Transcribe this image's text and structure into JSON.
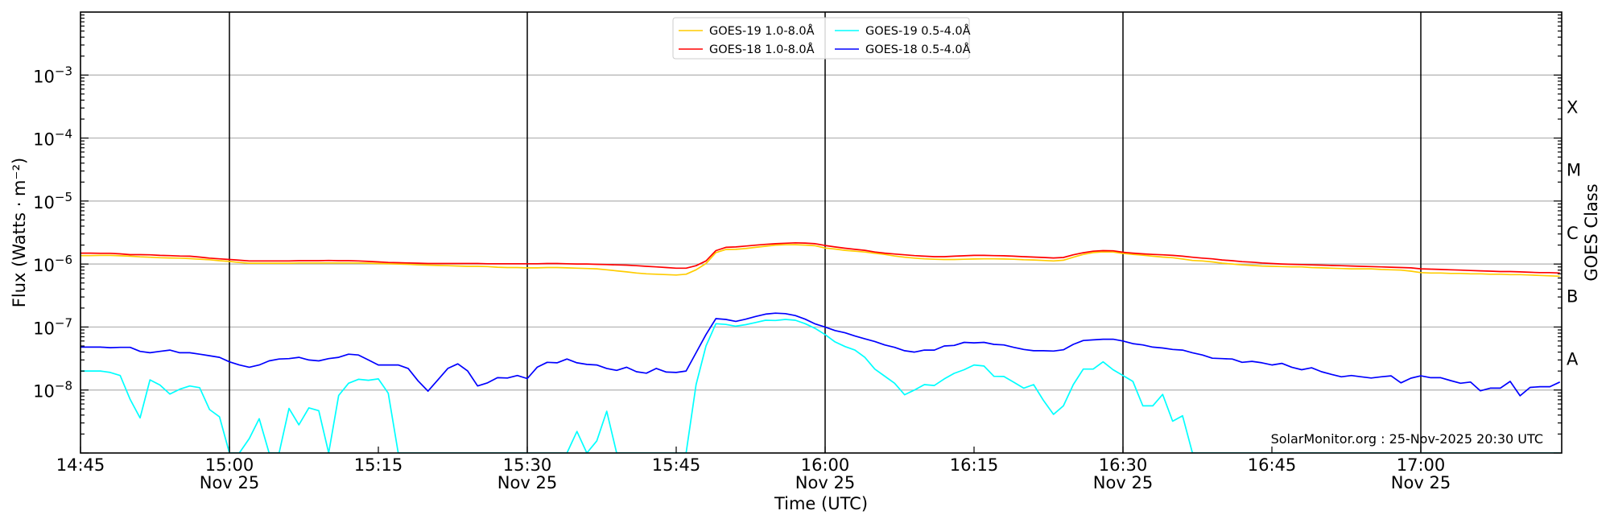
{
  "chart_data": {
    "type": "line",
    "xlabel": "Time (UTC)",
    "ylabel": "Flux (Watts · m⁻²)",
    "right_label": "GOES Class",
    "watermark": "SolarMonitor.org : 25-Nov-2025 20:30 UTC",
    "yscale": "log",
    "ylim": [
      1e-09,
      0.01
    ],
    "xlim": [
      "14:45",
      "17:14"
    ],
    "grid": "horizontal at decades",
    "legend_placement": "top-center",
    "x_ticks": [
      {
        "time": "14:45",
        "label": "14:45",
        "date": ""
      },
      {
        "time": "15:00",
        "label": "15:00",
        "date": "Nov 25"
      },
      {
        "time": "15:15",
        "label": "15:15",
        "date": ""
      },
      {
        "time": "15:30",
        "label": "15:30",
        "date": "Nov 25"
      },
      {
        "time": "15:45",
        "label": "15:45",
        "date": ""
      },
      {
        "time": "16:00",
        "label": "16:00",
        "date": "Nov 25"
      },
      {
        "time": "16:15",
        "label": "16:15",
        "date": ""
      },
      {
        "time": "16:30",
        "label": "16:30",
        "date": "Nov 25"
      },
      {
        "time": "16:45",
        "label": "16:45",
        "date": ""
      },
      {
        "time": "17:00",
        "label": "17:00",
        "date": "Nov 25"
      }
    ],
    "y_ticks": [
      {
        "value": 0.001,
        "base": "10",
        "exp": "−3"
      },
      {
        "value": 0.0001,
        "base": "10",
        "exp": "−4"
      },
      {
        "value": 1e-05,
        "base": "10",
        "exp": "−5"
      },
      {
        "value": 1e-06,
        "base": "10",
        "exp": "−6"
      },
      {
        "value": 1e-07,
        "base": "10",
        "exp": "−7"
      },
      {
        "value": 1e-08,
        "base": "10",
        "exp": "−8"
      }
    ],
    "class_labels": [
      {
        "label": "X",
        "range": [
          0.0001,
          0.001
        ]
      },
      {
        "label": "M",
        "range": [
          1e-05,
          0.0001
        ]
      },
      {
        "label": "C",
        "range": [
          1e-06,
          1e-05
        ]
      },
      {
        "label": "B",
        "range": [
          1e-07,
          1e-06
        ]
      },
      {
        "label": "A",
        "range": [
          1e-08,
          1e-07
        ]
      }
    ],
    "x": [
      "14:45",
      "14:46",
      "14:47",
      "14:48",
      "14:49",
      "14:50",
      "14:51",
      "14:52",
      "14:53",
      "14:54",
      "14:55",
      "14:56",
      "14:57",
      "14:58",
      "14:59",
      "15:00",
      "15:01",
      "15:02",
      "15:03",
      "15:04",
      "15:05",
      "15:06",
      "15:07",
      "15:08",
      "15:09",
      "15:10",
      "15:11",
      "15:12",
      "15:13",
      "15:14",
      "15:15",
      "15:16",
      "15:17",
      "15:18",
      "15:19",
      "15:20",
      "15:21",
      "15:22",
      "15:23",
      "15:24",
      "15:25",
      "15:26",
      "15:27",
      "15:28",
      "15:29",
      "15:30",
      "15:31",
      "15:32",
      "15:33",
      "15:34",
      "15:35",
      "15:36",
      "15:37",
      "15:38",
      "15:39",
      "15:40",
      "15:41",
      "15:42",
      "15:43",
      "15:44",
      "15:45",
      "15:46",
      "15:47",
      "15:48",
      "15:49",
      "15:50",
      "15:51",
      "15:52",
      "15:53",
      "15:54",
      "15:55",
      "15:56",
      "15:57",
      "15:58",
      "15:59",
      "16:00",
      "16:01",
      "16:02",
      "16:03",
      "16:04",
      "16:05",
      "16:06",
      "16:07",
      "16:08",
      "16:09",
      "16:10",
      "16:11",
      "16:12",
      "16:13",
      "16:14",
      "16:15",
      "16:16",
      "16:17",
      "16:18",
      "16:19",
      "16:20",
      "16:21",
      "16:22",
      "16:23",
      "16:24",
      "16:25",
      "16:26",
      "16:27",
      "16:28",
      "16:29",
      "16:30",
      "16:31",
      "16:32",
      "16:33",
      "16:34",
      "16:35",
      "16:36",
      "16:37",
      "16:38",
      "16:39",
      "16:40",
      "16:41",
      "16:42",
      "16:43",
      "16:44",
      "16:45",
      "16:46",
      "16:47",
      "16:48",
      "16:49",
      "16:50",
      "16:51",
      "16:52",
      "16:53",
      "16:54",
      "16:55",
      "16:56",
      "16:57",
      "16:58",
      "16:59",
      "17:00",
      "17:01",
      "17:02",
      "17:03",
      "17:04",
      "17:05",
      "17:06",
      "17:07",
      "17:08",
      "17:09",
      "17:10",
      "17:11",
      "17:12",
      "17:13",
      "17:14"
    ],
    "series": [
      {
        "name": "GOES-19 1.0-8.0Å",
        "color": "#ffcc00",
        "values": [
          1.36e-06,
          1.36e-06,
          1.37e-06,
          1.37e-06,
          1.35e-06,
          1.33e-06,
          1.3e-06,
          1.28e-06,
          1.26e-06,
          1.25e-06,
          1.24e-06,
          1.22e-06,
          1.19e-06,
          1.17e-06,
          1.13e-06,
          1.1e-06,
          1.06e-06,
          1.03e-06,
          1.03e-06,
          1.03e-06,
          1.03e-06,
          1.03e-06,
          1.04e-06,
          1.04e-06,
          1.04e-06,
          1.04e-06,
          1.04e-06,
          1.04e-06,
          1.04e-06,
          1.03e-06,
          1.02e-06,
          1.01e-06,
          1e-06,
          9.9e-07,
          9.7e-07,
          9.6e-07,
          9.5e-07,
          9.4e-07,
          9.3e-07,
          9.2e-07,
          9.2e-07,
          9.1e-07,
          8.9e-07,
          8.8e-07,
          8.8e-07,
          8.7e-07,
          8.7e-07,
          8.8e-07,
          8.8e-07,
          8.7e-07,
          8.6e-07,
          8.5e-07,
          8.4e-07,
          8.1e-07,
          7.8e-07,
          7.5e-07,
          7.2e-07,
          7e-07,
          6.9e-07,
          6.8e-07,
          6.7e-07,
          6.9e-07,
          8.1e-07,
          1.02e-06,
          1.52e-06,
          1.7e-06,
          1.71e-06,
          1.76e-06,
          1.84e-06,
          1.92e-06,
          2e-06,
          2.02e-06,
          2.03e-06,
          2e-06,
          1.95e-06,
          1.79e-06,
          1.73e-06,
          1.65e-06,
          1.6e-06,
          1.55e-06,
          1.48e-06,
          1.42e-06,
          1.34e-06,
          1.28e-06,
          1.24e-06,
          1.21e-06,
          1.19e-06,
          1.18e-06,
          1.18e-06,
          1.19e-06,
          1.2e-06,
          1.21e-06,
          1.21e-06,
          1.2e-06,
          1.19e-06,
          1.17e-06,
          1.16e-06,
          1.14e-06,
          1.12e-06,
          1.15e-06,
          1.28e-06,
          1.42e-06,
          1.52e-06,
          1.56e-06,
          1.55e-06,
          1.47e-06,
          1.42e-06,
          1.38e-06,
          1.33e-06,
          1.29e-06,
          1.26e-06,
          1.2e-06,
          1.14e-06,
          1.12e-06,
          1.08e-06,
          1.03e-06,
          1e-06,
          9.7e-07,
          9.5e-07,
          9.3e-07,
          9.2e-07,
          9.1e-07,
          9e-07,
          9e-07,
          8.8e-07,
          8.7e-07,
          8.6e-07,
          8.5e-07,
          8.4e-07,
          8.4e-07,
          8.4e-07,
          8.2e-07,
          8.1e-07,
          8e-07,
          7.7e-07,
          7.3e-07,
          7.2e-07,
          7.2e-07,
          7.1e-07,
          7.1e-07,
          7e-07,
          7e-07,
          6.9e-07,
          6.9e-07,
          6.8e-07,
          6.8e-07,
          6.7e-07,
          6.6e-07,
          6.5e-07,
          6.4e-07
        ]
      },
      {
        "name": "GOES-18 1.0-8.0Å",
        "color": "#ff0000",
        "values": [
          1.49e-06,
          1.49e-06,
          1.48e-06,
          1.48e-06,
          1.45e-06,
          1.41e-06,
          1.41e-06,
          1.4e-06,
          1.37e-06,
          1.36e-06,
          1.34e-06,
          1.33e-06,
          1.29e-06,
          1.24e-06,
          1.21e-06,
          1.18e-06,
          1.15e-06,
          1.12e-06,
          1.12e-06,
          1.12e-06,
          1.12e-06,
          1.12e-06,
          1.13e-06,
          1.13e-06,
          1.13e-06,
          1.14e-06,
          1.13e-06,
          1.13e-06,
          1.12e-06,
          1.1e-06,
          1.08e-06,
          1.06e-06,
          1.05e-06,
          1.04e-06,
          1.03e-06,
          1.02e-06,
          1.02e-06,
          1.02e-06,
          1.02e-06,
          1.02e-06,
          1.02e-06,
          1.01e-06,
          1.01e-06,
          1.01e-06,
          1.01e-06,
          1.01e-06,
          1.01e-06,
          1.02e-06,
          1.02e-06,
          1.01e-06,
          1e-06,
          1e-06,
          9.9e-07,
          9.8e-07,
          9.7e-07,
          9.6e-07,
          9.4e-07,
          9.2e-07,
          9e-07,
          8.8e-07,
          8.6e-07,
          8.6e-07,
          9.4e-07,
          1.12e-06,
          1.63e-06,
          1.84e-06,
          1.87e-06,
          1.93e-06,
          1.99e-06,
          2.05e-06,
          2.1e-06,
          2.14e-06,
          2.17e-06,
          2.15e-06,
          2.1e-06,
          1.97e-06,
          1.87e-06,
          1.78e-06,
          1.71e-06,
          1.65e-06,
          1.55e-06,
          1.49e-06,
          1.44e-06,
          1.4e-06,
          1.36e-06,
          1.33e-06,
          1.31e-06,
          1.31e-06,
          1.33e-06,
          1.35e-06,
          1.37e-06,
          1.37e-06,
          1.36e-06,
          1.35e-06,
          1.33e-06,
          1.31e-06,
          1.29e-06,
          1.27e-06,
          1.25e-06,
          1.27e-06,
          1.4e-06,
          1.51e-06,
          1.6e-06,
          1.63e-06,
          1.62e-06,
          1.54e-06,
          1.49e-06,
          1.45e-06,
          1.42e-06,
          1.4e-06,
          1.37e-06,
          1.33e-06,
          1.28e-06,
          1.24e-06,
          1.21e-06,
          1.16e-06,
          1.13e-06,
          1.09e-06,
          1.07e-06,
          1.04e-06,
          1.02e-06,
          1e-06,
          9.9e-07,
          9.8e-07,
          9.7e-07,
          9.6e-07,
          9.5e-07,
          9.4e-07,
          9.3e-07,
          9.2e-07,
          9.1e-07,
          9e-07,
          8.9e-07,
          8.8e-07,
          8.7e-07,
          8.4e-07,
          8.3e-07,
          8.2e-07,
          8.1e-07,
          8e-07,
          7.9e-07,
          7.8e-07,
          7.7e-07,
          7.6e-07,
          7.6e-07,
          7.5e-07,
          7.4e-07,
          7.3e-07,
          7.3e-07,
          7.2e-07
        ]
      },
      {
        "name": "GOES-19 0.5-4.0Å",
        "color": "#00ffff",
        "values": [
          2e-08,
          2e-08,
          2e-08,
          1.9e-08,
          1.7e-08,
          7.1e-09,
          3.6e-09,
          1.45e-08,
          1.2e-08,
          8.6e-09,
          1.03e-08,
          1.16e-08,
          1.09e-08,
          4.9e-09,
          3.75e-09,
          1e-09,
          1e-09,
          1.7e-09,
          3.5e-09,
          1e-09,
          1e-09,
          5.1e-09,
          2.8e-09,
          5.2e-09,
          4.7e-09,
          1e-09,
          8.2e-09,
          1.28e-08,
          1.48e-08,
          1.43e-08,
          1.5e-08,
          8.9e-09,
          1e-09,
          1e-09,
          1e-09,
          1e-09,
          1e-09,
          1e-09,
          1e-09,
          1e-09,
          1e-09,
          1e-09,
          1e-09,
          1e-09,
          1e-09,
          1e-09,
          1e-09,
          1e-09,
          1e-09,
          1e-09,
          2.2e-09,
          1e-09,
          1.55e-09,
          4.6e-09,
          1e-09,
          1e-09,
          1e-09,
          1e-09,
          1e-09,
          1e-09,
          1e-09,
          1e-09,
          1.22e-08,
          5e-08,
          1.13e-07,
          1.1e-07,
          1.03e-07,
          1.09e-07,
          1.18e-07,
          1.28e-07,
          1.27e-07,
          1.32e-07,
          1.28e-07,
          1.13e-07,
          9.5e-08,
          7.6e-08,
          5.8e-08,
          4.9e-08,
          4.3e-08,
          3.3e-08,
          2.15e-08,
          1.66e-08,
          1.28e-08,
          8.4e-09,
          1e-08,
          1.22e-08,
          1.18e-08,
          1.5e-08,
          1.84e-08,
          2.1e-08,
          2.5e-08,
          2.4e-08,
          1.65e-08,
          1.64e-08,
          1.33e-08,
          1.07e-08,
          1.22e-08,
          6.8e-09,
          4.1e-09,
          5.6e-09,
          1.22e-08,
          2.15e-08,
          2.15e-08,
          2.8e-08,
          2.1e-08,
          1.7e-08,
          1.37e-08,
          5.6e-09,
          5.6e-09,
          8.5e-09,
          3.2e-09,
          3.9e-09,
          1e-09,
          1e-09,
          1e-09,
          1e-09,
          1e-09,
          1e-09,
          1e-09,
          1e-09,
          1e-09,
          1e-09,
          1e-09,
          1e-09,
          1e-09,
          1e-09,
          1e-09,
          1e-09,
          1e-09,
          1e-09,
          1e-09,
          1e-09,
          1e-09,
          1e-09,
          1e-09,
          1e-09,
          1e-09,
          1e-09,
          1e-09,
          1e-09,
          1e-09,
          1e-09,
          1e-09,
          1e-09,
          1e-09,
          1e-09,
          1e-09,
          1e-09,
          1e-09,
          1e-09
        ]
      },
      {
        "name": "GOES-18 0.5-4.0Å",
        "color": "#0000ff",
        "values": [
          4.8e-08,
          4.8e-08,
          4.8e-08,
          4.7e-08,
          4.75e-08,
          4.75e-08,
          4.1e-08,
          3.9e-08,
          4.1e-08,
          4.3e-08,
          3.9e-08,
          3.9e-08,
          3.7e-08,
          3.5e-08,
          3.3e-08,
          2.8e-08,
          2.5e-08,
          2.3e-08,
          2.5e-08,
          2.9e-08,
          3.1e-08,
          3.15e-08,
          3.3e-08,
          3e-08,
          2.9e-08,
          3.15e-08,
          3.3e-08,
          3.7e-08,
          3.6e-08,
          3e-08,
          2.5e-08,
          2.5e-08,
          2.5e-08,
          2.2e-08,
          1.4e-08,
          9.6e-09,
          1.45e-08,
          2.2e-08,
          2.6e-08,
          2e-08,
          1.16e-08,
          1.3e-08,
          1.57e-08,
          1.55e-08,
          1.7e-08,
          1.52e-08,
          2.3e-08,
          2.75e-08,
          2.7e-08,
          3.1e-08,
          2.7e-08,
          2.55e-08,
          2.5e-08,
          2.2e-08,
          2.05e-08,
          2.3e-08,
          1.95e-08,
          1.85e-08,
          2.2e-08,
          1.93e-08,
          1.9e-08,
          2e-08,
          3.9e-08,
          7.6e-08,
          1.36e-07,
          1.32e-07,
          1.23e-07,
          1.33e-07,
          1.47e-07,
          1.6e-07,
          1.66e-07,
          1.63e-07,
          1.52e-07,
          1.33e-07,
          1.12e-07,
          1e-07,
          8.8e-08,
          8.1e-08,
          7.2e-08,
          6.5e-08,
          5.9e-08,
          5.2e-08,
          4.75e-08,
          4.2e-08,
          4e-08,
          4.3e-08,
          4.3e-08,
          5e-08,
          5.1e-08,
          5.7e-08,
          5.6e-08,
          5.7e-08,
          5.3e-08,
          5.2e-08,
          4.75e-08,
          4.4e-08,
          4.2e-08,
          4.2e-08,
          4.15e-08,
          4.35e-08,
          5.3e-08,
          6.1e-08,
          6.25e-08,
          6.4e-08,
          6.4e-08,
          6e-08,
          5.45e-08,
          5.2e-08,
          4.8e-08,
          4.65e-08,
          4.4e-08,
          4.3e-08,
          3.9e-08,
          3.6e-08,
          3.2e-08,
          3.15e-08,
          3.1e-08,
          2.75e-08,
          2.85e-08,
          2.7e-08,
          2.5e-08,
          2.65e-08,
          2.3e-08,
          2.1e-08,
          2.25e-08,
          1.95e-08,
          1.77e-08,
          1.62e-08,
          1.7e-08,
          1.62e-08,
          1.55e-08,
          1.62e-08,
          1.68e-08,
          1.3e-08,
          1.54e-08,
          1.68e-08,
          1.57e-08,
          1.57e-08,
          1.41e-08,
          1.28e-08,
          1.34e-08,
          9.7e-09,
          1.07e-08,
          1.07e-08,
          1.37e-08,
          8.1e-09,
          1.1e-08,
          1.13e-08,
          1.13e-08,
          1.34e-08
        ]
      }
    ]
  }
}
